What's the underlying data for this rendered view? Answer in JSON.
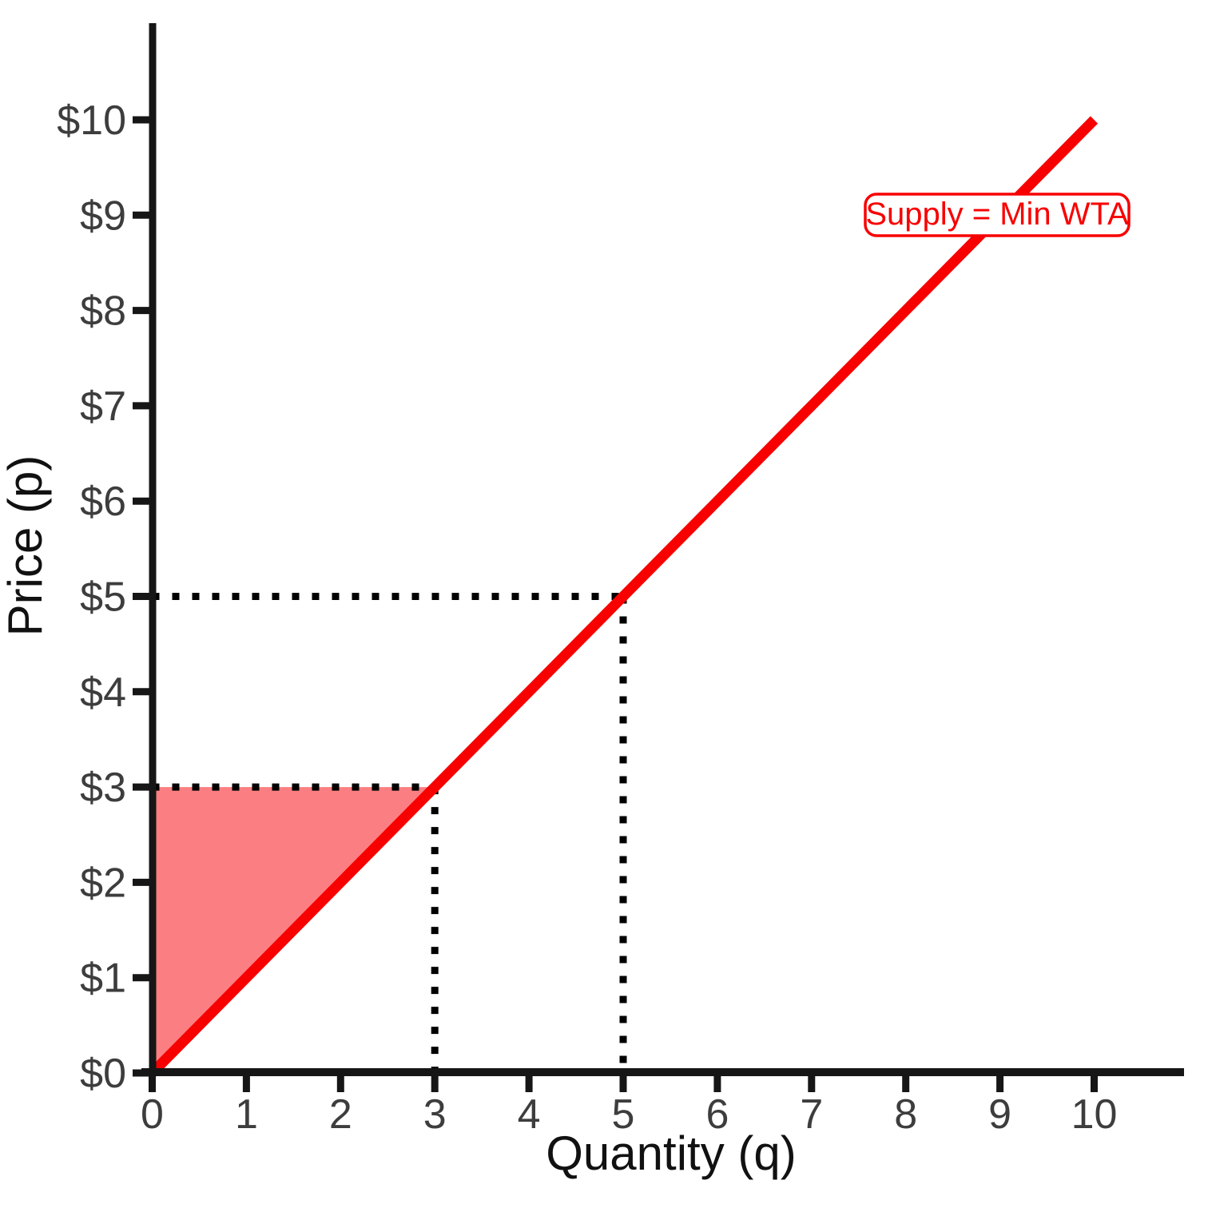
{
  "chart_data": {
    "type": "line",
    "title": "",
    "xlabel": "Quantity (q)",
    "ylabel": "Price (p)",
    "x_tick_values": [
      0,
      1,
      2,
      3,
      4,
      5,
      6,
      7,
      8,
      9,
      10
    ],
    "x_ticks": [
      "0",
      "1",
      "2",
      "3",
      "4",
      "5",
      "6",
      "7",
      "8",
      "9",
      "10"
    ],
    "y_tick_values": [
      0,
      1,
      2,
      3,
      4,
      5,
      6,
      7,
      8,
      9,
      10
    ],
    "y_ticks": [
      "$0",
      "$1",
      "$2",
      "$3",
      "$4",
      "$5",
      "$6",
      "$7",
      "$8",
      "$9",
      "$10"
    ],
    "xlim": [
      0,
      10.95
    ],
    "ylim": [
      0,
      11
    ],
    "grid": false,
    "series": [
      {
        "name": "Supply = Min WTA",
        "type": "line",
        "color": "#f80000",
        "points": [
          [
            0,
            0
          ],
          [
            10,
            10
          ]
        ],
        "equation": "p = q"
      }
    ],
    "guides": [
      {
        "name": "price-5-horizontal",
        "style": "dotted",
        "color": "#000000",
        "points": [
          [
            0,
            5
          ],
          [
            5,
            5
          ]
        ]
      },
      {
        "name": "quantity-5-vertical",
        "style": "dotted",
        "color": "#000000",
        "points": [
          [
            5,
            5
          ],
          [
            5,
            0
          ]
        ]
      },
      {
        "name": "price-3-horizontal",
        "style": "dotted",
        "color": "#000000",
        "points": [
          [
            0,
            3
          ],
          [
            3,
            3
          ]
        ]
      },
      {
        "name": "quantity-3-vertical",
        "style": "dotted",
        "color": "#000000",
        "points": [
          [
            3,
            3
          ],
          [
            3,
            0
          ]
        ]
      }
    ],
    "shaded_region": {
      "name": "producer-surplus-region",
      "vertices": [
        [
          0,
          0
        ],
        [
          0,
          3
        ],
        [
          3,
          3
        ]
      ],
      "fill": "#fb7f82"
    },
    "annotation": {
      "text": "Supply = Min WTA",
      "text_color": "#f80000",
      "box_color": "#f80000",
      "box_fill": "#ffffff"
    },
    "colors": {
      "axis": "#161616",
      "tick_label": "#3d3d3d",
      "axis_title": "#111111",
      "supply_line": "#f80000",
      "region_fill": "#fb7f82",
      "guide_dots": "#000000",
      "background": "#ffffff"
    },
    "legend_position": "none"
  }
}
